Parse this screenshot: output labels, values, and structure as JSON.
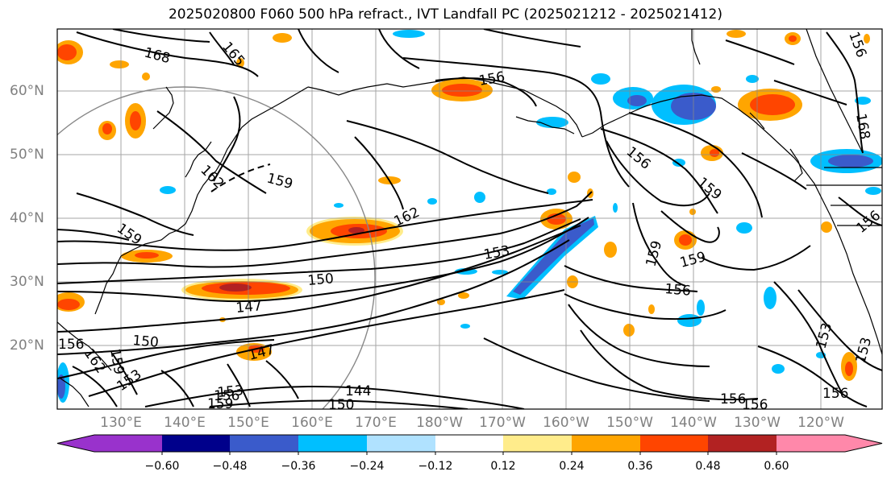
{
  "title": "2025020800 F060 500 hPa refract., IVT Landfall PC (2025021212 - 2025021412)",
  "latitude_labels": [
    "60°N",
    "50°N",
    "40°N",
    "30°N",
    "20°N"
  ],
  "longitude_labels": [
    "130°E",
    "140°E",
    "150°E",
    "160°E",
    "170°E",
    "180°W",
    "170°W",
    "160°W",
    "150°W",
    "140°W",
    "130°W",
    "120°W"
  ],
  "colorbar": {
    "ticks": [
      "−0.60",
      "−0.48",
      "−0.36",
      "−0.24",
      "−0.12",
      "0.12",
      "0.24",
      "0.36",
      "0.48",
      "0.60"
    ],
    "colors": [
      "#9932CC",
      "#00008B",
      "#3A5BCB",
      "#00BFFF",
      "#B0E2FF",
      "#FFFFFF",
      "#FFEC8B",
      "#FFA500",
      "#FF4500",
      "#B22222",
      "#FF88AA"
    ]
  },
  "contour_labels": [
    "168",
    "165",
    "156",
    "162",
    "159",
    "162",
    "159",
    "156",
    "159",
    "153",
    "150",
    "147",
    "159",
    "159",
    "156",
    "150",
    "147",
    "156",
    "159",
    "162",
    "153",
    "153",
    "156",
    "159",
    "144",
    "150",
    "156",
    "156",
    "153",
    "153",
    "156",
    "156",
    "168",
    "156"
  ]
}
